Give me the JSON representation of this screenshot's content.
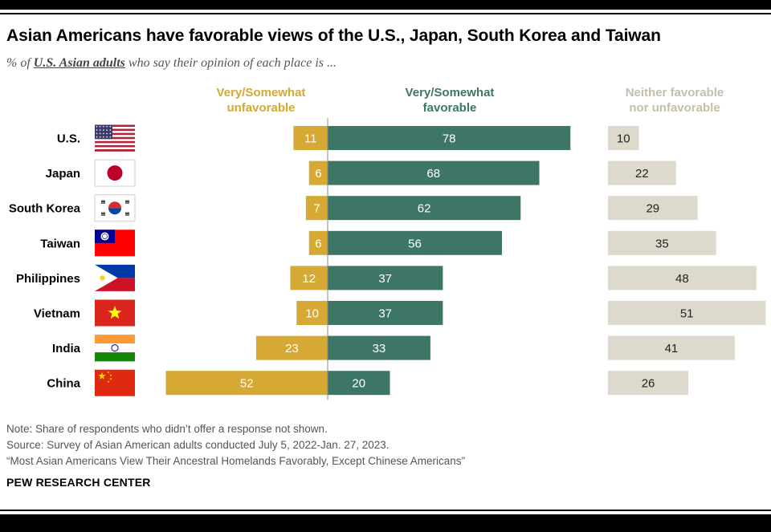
{
  "title": "Asian Americans have favorable views of the U.S., Japan, South Korea and Taiwan",
  "subtitle_prefix": "% of ",
  "subtitle_emph": "U.S. Asian adults",
  "subtitle_suffix": " who say their opinion of each place is ...",
  "colors": {
    "unfavorable": "#D6A834",
    "favorable": "#3D7667",
    "neither": "#DDD9CC",
    "neither_head": "#C4BFA8",
    "text_dark": "#000000"
  },
  "chart_data": {
    "type": "bar",
    "title": "Asian Americans have favorable views of the U.S., Japan, South Korea and Taiwan",
    "categories": [
      "U.S.",
      "Japan",
      "South Korea",
      "Taiwan",
      "Philippines",
      "Vietnam",
      "India",
      "China"
    ],
    "flag_icons": [
      "us-flag-icon",
      "japan-flag-icon",
      "south-korea-flag-icon",
      "taiwan-flag-icon",
      "philippines-flag-icon",
      "vietnam-flag-icon",
      "india-flag-icon",
      "china-flag-icon"
    ],
    "series": [
      {
        "name": "Very/Somewhat\nunfavorable",
        "key": "unfavorable",
        "values": [
          11,
          6,
          7,
          6,
          12,
          10,
          23,
          52
        ]
      },
      {
        "name": "Very/Somewhat\nfavorable",
        "key": "favorable",
        "values": [
          78,
          68,
          62,
          56,
          37,
          37,
          33,
          20
        ]
      },
      {
        "name": "Neither favorable\nnor unfavorable",
        "key": "neither",
        "values": [
          10,
          22,
          29,
          35,
          48,
          51,
          41,
          26
        ]
      }
    ],
    "xlabel": "",
    "ylabel": ""
  },
  "notes": [
    "Note: Share of respondents who didn’t offer a response not shown.",
    "Source: Survey of Asian American adults conducted July 5, 2022-Jan. 27, 2023.",
    "“Most Asian Americans View Their Ancestral Homelands Favorably, Except Chinese Americans”"
  ],
  "brand": "PEW RESEARCH CENTER"
}
